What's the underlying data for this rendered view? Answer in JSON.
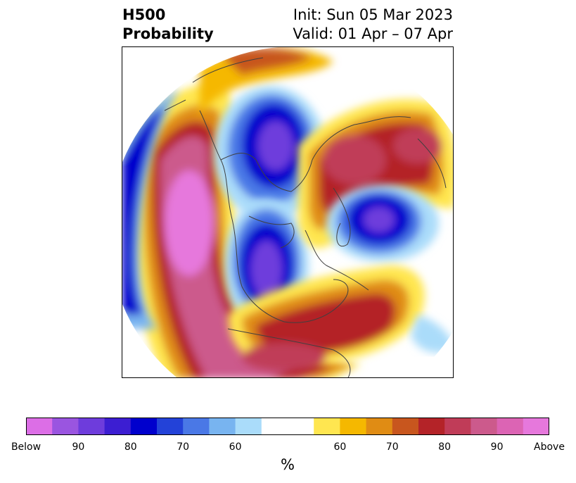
{
  "title": {
    "left_line1": "H500",
    "left_line2": "Probability",
    "right_line1": "Init: Sun 05 Mar 2023",
    "right_line2": "Valid: 01 Apr – 07 Apr"
  },
  "colorbar": {
    "unit": "%",
    "colors": [
      "#dc6ee6",
      "#9a55e0",
      "#6e3cdc",
      "#3c1ed2",
      "#0000cd",
      "#2342d8",
      "#4a78e6",
      "#78b4f0",
      "#aadcfa",
      "#ffffff",
      "#ffffff",
      "#ffe650",
      "#f5b800",
      "#e08c14",
      "#c8561e",
      "#b42328",
      "#c03c58",
      "#cc5a8c",
      "#dc64b4",
      "#e678dc"
    ],
    "tick_labels": [
      "Below",
      "90",
      "80",
      "70",
      "60",
      "60",
      "70",
      "80",
      "90",
      "Above"
    ]
  },
  "map": {
    "projection": "north-polar-stereographic",
    "coastline_color": "#404040"
  }
}
